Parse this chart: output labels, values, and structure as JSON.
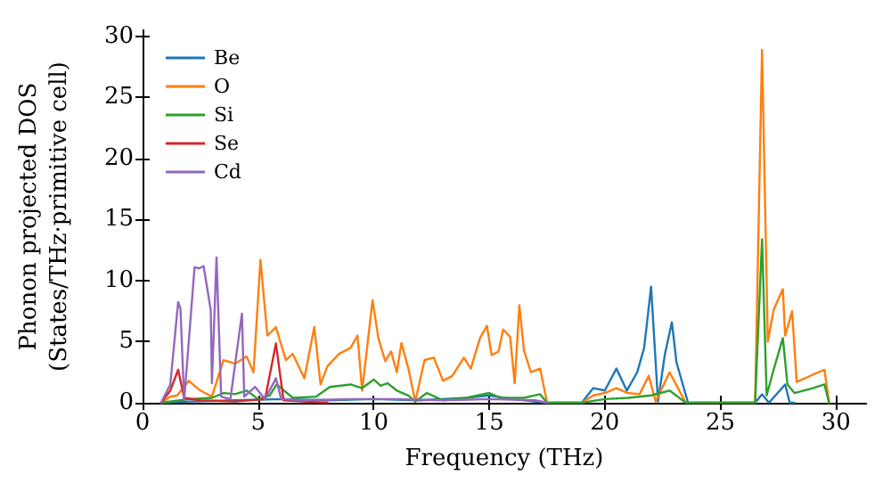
{
  "chart_data": {
    "type": "line",
    "xlabel": "Frequency (THz)",
    "ylabel": "Phonon projected DOS\n(States/THz·primitive cell)",
    "xlim": [
      0,
      31.3
    ],
    "ylim": [
      0,
      30.5
    ],
    "xticks": [
      0,
      5,
      10,
      15,
      20,
      25,
      30
    ],
    "yticks": [
      0,
      5,
      10,
      15,
      20,
      25,
      30
    ],
    "grid": false,
    "legend": "top left",
    "marker": "none",
    "line_style": "solid",
    "series": [
      {
        "name": "Be",
        "color": "#1f77b4",
        "x": [
          0.8,
          2,
          4,
          6,
          8,
          10,
          12,
          14,
          15,
          16,
          17.5,
          19,
          19.5,
          20,
          20.5,
          20.95,
          21.4,
          21.7,
          22,
          22.3,
          22.6,
          22.9,
          23.1,
          23.6,
          26.5,
          26.8,
          27.1,
          27.8,
          28,
          28.2
        ],
        "values": [
          0,
          0.1,
          0.2,
          0.3,
          0.2,
          0.3,
          0.2,
          0.4,
          0.6,
          0.3,
          0,
          0,
          1.2,
          1.0,
          2.8,
          1.0,
          2.5,
          4.5,
          9.5,
          0.1,
          4.0,
          6.6,
          3.3,
          0,
          0,
          0.7,
          0,
          1.5,
          0,
          0
        ]
      },
      {
        "name": "O",
        "color": "#ff7f0e",
        "x": [
          0.8,
          1.2,
          1.5,
          2,
          2.5,
          3,
          3.5,
          4,
          4.5,
          4.8,
          5.1,
          5.4,
          5.77,
          6.2,
          6.5,
          7,
          7.43,
          7.7,
          8,
          8.5,
          9,
          9.3,
          9.5,
          9.95,
          10.2,
          10.5,
          10.75,
          11,
          11.2,
          11.5,
          11.8,
          12.2,
          12.6,
          13,
          13.4,
          13.9,
          14.2,
          14.6,
          14.9,
          15.1,
          15.4,
          15.6,
          15.9,
          16.1,
          16.3,
          16.5,
          16.8,
          17.2,
          17.5,
          19,
          19.5,
          20,
          20.5,
          21,
          21.5,
          21.9,
          22.2,
          22.8,
          23.5,
          26.5,
          26.8,
          27.05,
          27.3,
          27.7,
          27.8,
          28.1,
          28.3,
          29,
          29.5,
          29.7
        ],
        "values": [
          0,
          0.5,
          0.6,
          1.8,
          1,
          0.5,
          3.5,
          3.2,
          3.8,
          2.5,
          11.7,
          5.5,
          6.2,
          3.5,
          4,
          2,
          6.2,
          1.5,
          3,
          4,
          4.5,
          5.5,
          1,
          8.4,
          5.3,
          3.4,
          4.2,
          2.5,
          4.9,
          2.8,
          0.1,
          3.5,
          3.7,
          1.8,
          2.2,
          3.7,
          2.8,
          5.3,
          6.3,
          3.9,
          4.2,
          6,
          5.4,
          1.6,
          8,
          4.3,
          2.5,
          2.8,
          0,
          0,
          0.6,
          0.8,
          1.2,
          0.8,
          0.7,
          2.2,
          0.1,
          2.5,
          0,
          0,
          28.9,
          5,
          7.6,
          9.3,
          5.5,
          7.5,
          1.7,
          2.3,
          2.7,
          0
        ]
      },
      {
        "name": "Si",
        "color": "#2ca02c",
        "x": [
          0.8,
          2,
          3,
          3.5,
          4,
          4.5,
          5,
          5.5,
          5.8,
          6.5,
          7.5,
          8.1,
          9,
          9.5,
          10,
          10.3,
          10.6,
          11,
          11.5,
          11.8,
          12.3,
          13,
          14,
          15,
          15.5,
          16.5,
          17.2,
          17.5,
          19,
          20,
          21,
          22,
          22.8,
          23.5,
          26.5,
          26.8,
          27,
          27.3,
          27.7,
          27.9,
          28.2,
          29,
          29.5,
          29.7
        ],
        "values": [
          0,
          0.3,
          0.4,
          0.8,
          0.7,
          1,
          0.3,
          0.6,
          1.5,
          0.4,
          0.5,
          1.3,
          1.5,
          1.2,
          1.9,
          1.4,
          1.6,
          1,
          0.6,
          0.1,
          0.8,
          0.2,
          0.4,
          0.8,
          0.4,
          0.4,
          0.7,
          0,
          0,
          0.3,
          0.4,
          0.6,
          1,
          0,
          0,
          13.4,
          0.6,
          2.7,
          5.3,
          1.5,
          0.8,
          1.2,
          1.5,
          0
        ]
      },
      {
        "name": "Se",
        "color": "#d62728",
        "x": [
          0.8,
          1.2,
          1.54,
          1.8,
          2.5,
          4,
          5.3,
          5.77,
          6.1,
          7,
          8
        ],
        "values": [
          0,
          1,
          2.7,
          0.4,
          0.2,
          0.1,
          0.3,
          4.85,
          0.2,
          0.1,
          0
        ]
      },
      {
        "name": "Cd",
        "color": "#9467bd",
        "x": [
          0.8,
          1.2,
          1.54,
          1.64,
          1.8,
          2.25,
          2.45,
          2.64,
          2.95,
          3.0,
          3.2,
          3.4,
          3.8,
          4.3,
          4.4,
          4.87,
          5.3,
          5.77,
          6,
          7,
          9,
          11,
          13,
          15,
          17,
          17.5
        ],
        "values": [
          0,
          1.5,
          8.25,
          7.7,
          0.2,
          11.1,
          11,
          11.2,
          7.6,
          1.6,
          11.9,
          0.5,
          0.3,
          7.3,
          0.5,
          1.3,
          0.3,
          2.0,
          0.3,
          0.2,
          0.3,
          0.3,
          0.2,
          0.3,
          0.2,
          0
        ]
      }
    ]
  }
}
